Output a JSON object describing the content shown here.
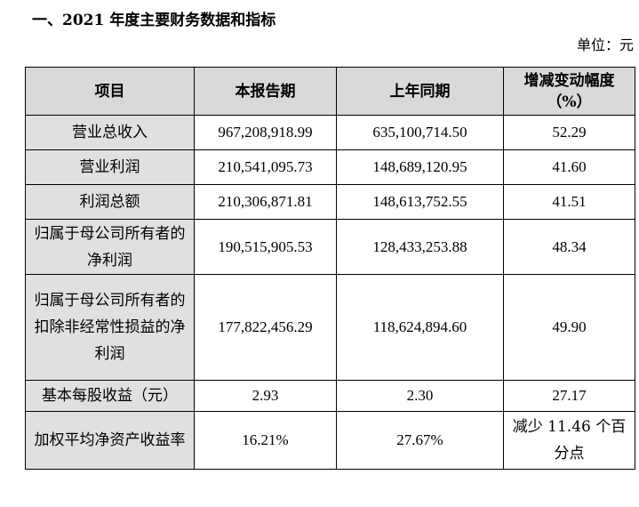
{
  "heading": "一、2021 年度主要财务数据和指标",
  "unit_label": "单位：元",
  "table": {
    "headers": [
      "项目",
      "本报告期",
      "上年同期",
      "增减变动幅度（%）"
    ],
    "rows": [
      {
        "item": "营业总收入",
        "current": "967,208,918.99",
        "prior": "635,100,714.50",
        "change": "52.29"
      },
      {
        "item": "营业利润",
        "current": "210,541,095.73",
        "prior": "148,689,120.95",
        "change": "41.60"
      },
      {
        "item": "利润总额",
        "current": "210,306,871.81",
        "prior": "148,613,752.55",
        "change": "41.51"
      },
      {
        "item": "归属于母公司所有者的净利润",
        "current": "190,515,905.53",
        "prior": "128,433,253.88",
        "change": "48.34"
      },
      {
        "item": "归属于母公司所有者的扣除非经常性损益的净利润",
        "current": "177,822,456.29",
        "prior": "118,624,894.60",
        "change": "49.90"
      },
      {
        "item": "基本每股收益（元）",
        "current": "2.93",
        "prior": "2.30",
        "change": "27.17"
      },
      {
        "item": "加权平均净资产收益率",
        "current": "16.21%",
        "prior": "27.67%",
        "change": "减少 11.46 个百分点"
      }
    ]
  }
}
